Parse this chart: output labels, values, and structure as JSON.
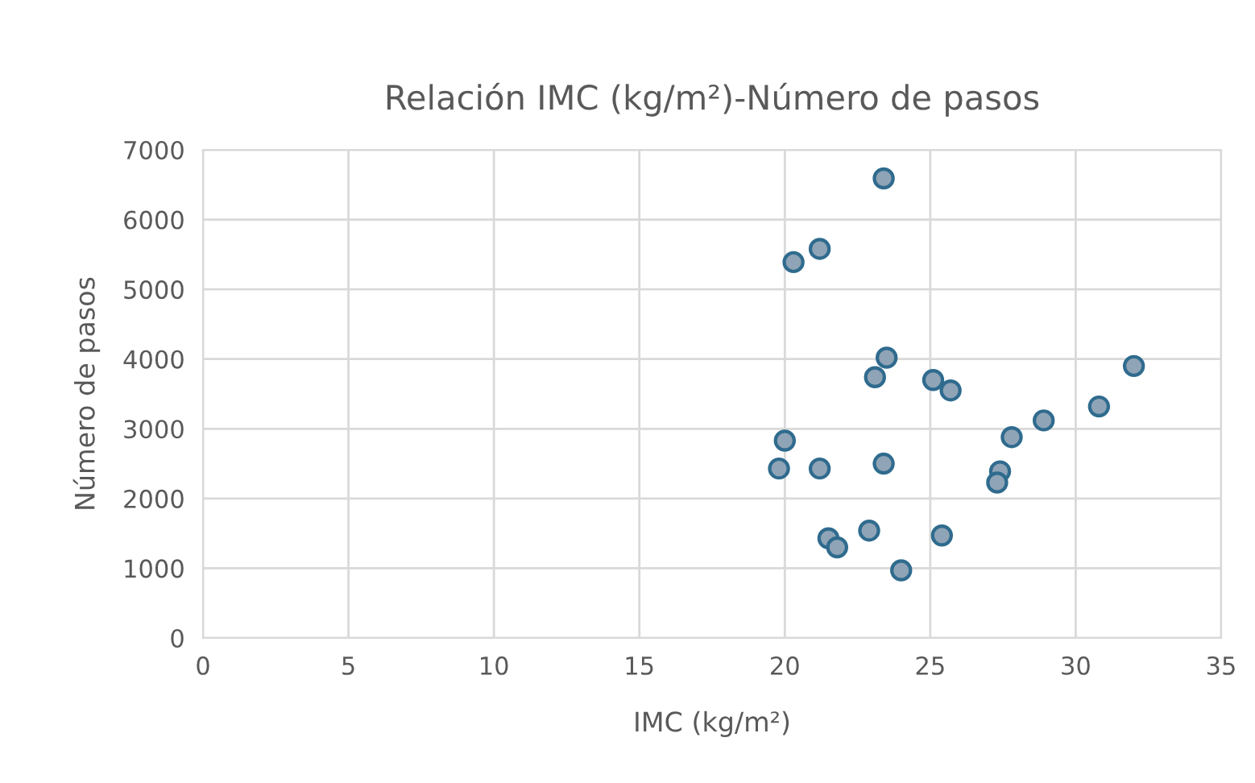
{
  "chart_data": {
    "type": "scatter",
    "title": "Relación IMC (kg/m²)-Número de pasos",
    "xlabel": "IMC (kg/m²)",
    "ylabel": "Número de pasos",
    "x": [
      23.4,
      20.3,
      21.2,
      23.5,
      23.1,
      25.1,
      25.7,
      32.0,
      30.8,
      28.9,
      27.8,
      20.0,
      19.8,
      21.2,
      23.4,
      27.4,
      27.3,
      21.5,
      21.8,
      22.9,
      25.4,
      24.0
    ],
    "values": [
      6590,
      5390,
      5580,
      4020,
      3740,
      3700,
      3550,
      3900,
      3320,
      3120,
      2880,
      2830,
      2430,
      2430,
      2500,
      2390,
      2230,
      1430,
      1300,
      1540,
      1470,
      970
    ],
    "color": "#2f6b8e",
    "marker": "circle",
    "grid": true,
    "xlim": [
      0,
      35
    ],
    "xticks": [
      0,
      5,
      10,
      15,
      20,
      25,
      30,
      35
    ],
    "ylim": [
      0,
      7000
    ],
    "yticks": [
      0,
      1000,
      2000,
      3000,
      4000,
      5000,
      6000,
      7000
    ]
  }
}
